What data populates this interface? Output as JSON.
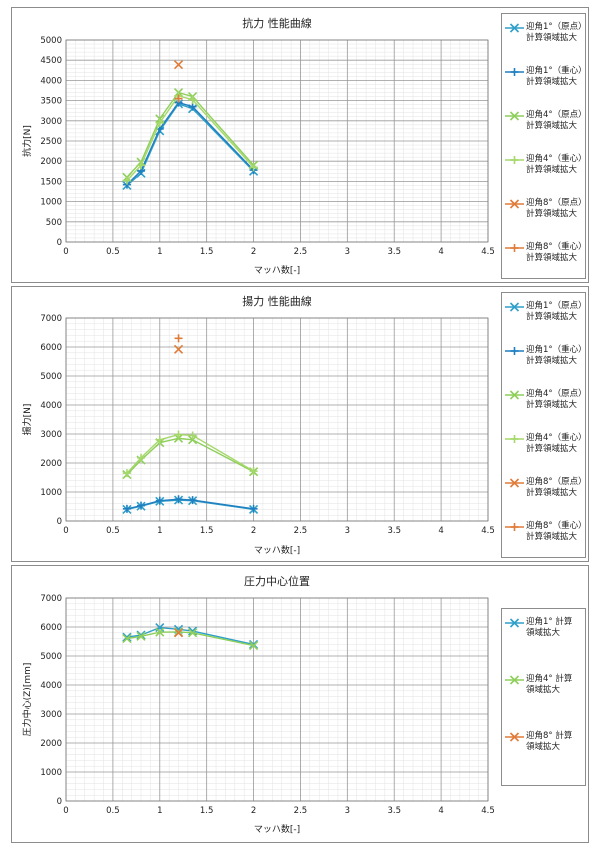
{
  "chart_data": [
    {
      "type": "line",
      "title": "抗力 性能曲線",
      "xlabel": "マッハ数[-]",
      "ylabel": "抗力[N]",
      "xlim": [
        0,
        4.5
      ],
      "ylim": [
        0,
        5000
      ],
      "xticks": [
        0,
        0.5,
        1,
        1.5,
        2,
        2.5,
        3,
        3.5,
        4,
        4.5
      ],
      "yticks": [
        0,
        500,
        1000,
        1500,
        2000,
        2500,
        3000,
        3500,
        4000,
        4500,
        5000
      ],
      "tick_labels_x": [
        "0",
        "0.5",
        "1",
        "1.5",
        "2",
        "2.5",
        "3",
        "3.5",
        "4",
        "4.5"
      ],
      "tick_labels_y": [
        "0",
        "500",
        "1000",
        "1500",
        "2000",
        "2500",
        "3000",
        "3500",
        "4000",
        "4500",
        "5000"
      ],
      "grid": true,
      "legend_position": "right",
      "series": [
        {
          "name": "迎角1°（原点）\n計算領域拡大",
          "color": "#2e9fc9",
          "marker": "x",
          "x": [
            0.65,
            0.8,
            1.0,
            1.2,
            1.35,
            2.0
          ],
          "y": [
            1400,
            1700,
            2750,
            3420,
            3300,
            1750
          ]
        },
        {
          "name": "迎角1°（重心）\n計算領域拡大",
          "color": "#1f7fc0",
          "marker": "+",
          "x": [
            0.65,
            0.8,
            1.0,
            1.2,
            1.35,
            2.0
          ],
          "y": [
            1420,
            1760,
            2800,
            3450,
            3350,
            1780
          ]
        },
        {
          "name": "迎角4°（原点）\n計算領域拡大",
          "color": "#8ecf5a",
          "marker": "x",
          "x": [
            0.65,
            0.8,
            1.0,
            1.2,
            1.35,
            2.0
          ],
          "y": [
            1600,
            1980,
            3050,
            3700,
            3600,
            1900
          ]
        },
        {
          "name": "迎角4°（重心）\n計算領域拡大",
          "color": "#a5d86b",
          "marker": "+",
          "x": [
            0.65,
            0.8,
            1.0,
            1.2,
            1.35,
            2.0
          ],
          "y": [
            1520,
            1900,
            2950,
            3620,
            3520,
            1850
          ]
        },
        {
          "name": "迎角8°（原点）\n計算領域拡大",
          "color": "#e07b39",
          "marker": "x",
          "x": [
            1.2
          ],
          "y": [
            4390
          ]
        },
        {
          "name": "迎角8°（重心）\n計算領域拡大",
          "color": "#e07b39",
          "marker": "+",
          "x": [
            1.2
          ],
          "y": [
            3550
          ]
        }
      ]
    },
    {
      "type": "line",
      "title": "揚力 性能曲線",
      "xlabel": "マッハ数[-]",
      "ylabel": "揚力[N]",
      "xlim": [
        0,
        4.5
      ],
      "ylim": [
        0,
        7000
      ],
      "xticks": [
        0,
        0.5,
        1,
        1.5,
        2,
        2.5,
        3,
        3.5,
        4,
        4.5
      ],
      "yticks": [
        0,
        1000,
        2000,
        3000,
        4000,
        5000,
        6000,
        7000
      ],
      "tick_labels_x": [
        "0",
        "0.5",
        "1",
        "1.5",
        "2",
        "2.5",
        "3",
        "3.5",
        "4",
        "4.5"
      ],
      "tick_labels_y": [
        "0",
        "1000",
        "2000",
        "3000",
        "4000",
        "5000",
        "6000",
        "7000"
      ],
      "grid": true,
      "legend_position": "right",
      "series": [
        {
          "name": "迎角1°（原点）\n計算領域拡大",
          "color": "#2e9fc9",
          "marker": "x",
          "x": [
            0.65,
            0.8,
            1.0,
            1.2,
            1.35,
            2.0
          ],
          "y": [
            400,
            510,
            680,
            720,
            700,
            400
          ]
        },
        {
          "name": "迎角1°（重心）\n計算領域拡大",
          "color": "#1f7fc0",
          "marker": "+",
          "x": [
            0.65,
            0.8,
            1.0,
            1.2,
            1.35,
            2.0
          ],
          "y": [
            420,
            530,
            700,
            750,
            720,
            420
          ]
        },
        {
          "name": "迎角4°（原点）\n計算領域拡大",
          "color": "#8ecf5a",
          "marker": "x",
          "x": [
            0.65,
            0.8,
            1.0,
            1.2,
            1.35,
            2.0
          ],
          "y": [
            1600,
            2100,
            2700,
            2850,
            2800,
            1700
          ]
        },
        {
          "name": "迎角4°（重心）\n計算領域拡大",
          "color": "#a5d86b",
          "marker": "+",
          "x": [
            0.65,
            0.8,
            1.0,
            1.2,
            1.35,
            2.0
          ],
          "y": [
            1650,
            2180,
            2800,
            2980,
            2950,
            1720
          ]
        },
        {
          "name": "迎角8°（原点）\n計算領域拡大",
          "color": "#e07b39",
          "marker": "x",
          "x": [
            1.2
          ],
          "y": [
            5920
          ]
        },
        {
          "name": "迎角8°（重心）\n計算領域拡大",
          "color": "#e07b39",
          "marker": "+",
          "x": [
            1.2
          ],
          "y": [
            6300
          ]
        }
      ]
    },
    {
      "type": "line",
      "title": "圧力中心位置",
      "xlabel": "マッハ数[-]",
      "ylabel": "圧力中心(Z)[mm]",
      "xlim": [
        0,
        4.5
      ],
      "ylim": [
        0,
        7000
      ],
      "xticks": [
        0,
        0.5,
        1,
        1.5,
        2,
        2.5,
        3,
        3.5,
        4,
        4.5
      ],
      "yticks": [
        0,
        1000,
        2000,
        3000,
        4000,
        5000,
        6000,
        7000
      ],
      "tick_labels_x": [
        "0",
        "0.5",
        "1",
        "1.5",
        "2",
        "2.5",
        "3",
        "3.5",
        "4",
        "4.5"
      ],
      "tick_labels_y": [
        "0",
        "1000",
        "2000",
        "3000",
        "4000",
        "5000",
        "6000",
        "7000"
      ],
      "grid": true,
      "legend_position": "right",
      "series": [
        {
          "name": "迎角1°  計算\n領域拡大",
          "color": "#2e9fc9",
          "marker": "x",
          "x": [
            0.65,
            0.8,
            1.0,
            1.2,
            1.35,
            2.0
          ],
          "y": [
            5650,
            5720,
            5980,
            5920,
            5860,
            5400
          ]
        },
        {
          "name": "迎角4°  計算\n領域拡大",
          "color": "#8ecf5a",
          "marker": "x",
          "x": [
            0.65,
            0.8,
            1.0,
            1.2,
            1.35,
            2.0
          ],
          "y": [
            5600,
            5680,
            5820,
            5830,
            5800,
            5360
          ]
        },
        {
          "name": "迎角8°  計算\n領域拡大",
          "color": "#e07b39",
          "marker": "x",
          "x": [
            1.2
          ],
          "y": [
            5800
          ]
        }
      ]
    }
  ]
}
